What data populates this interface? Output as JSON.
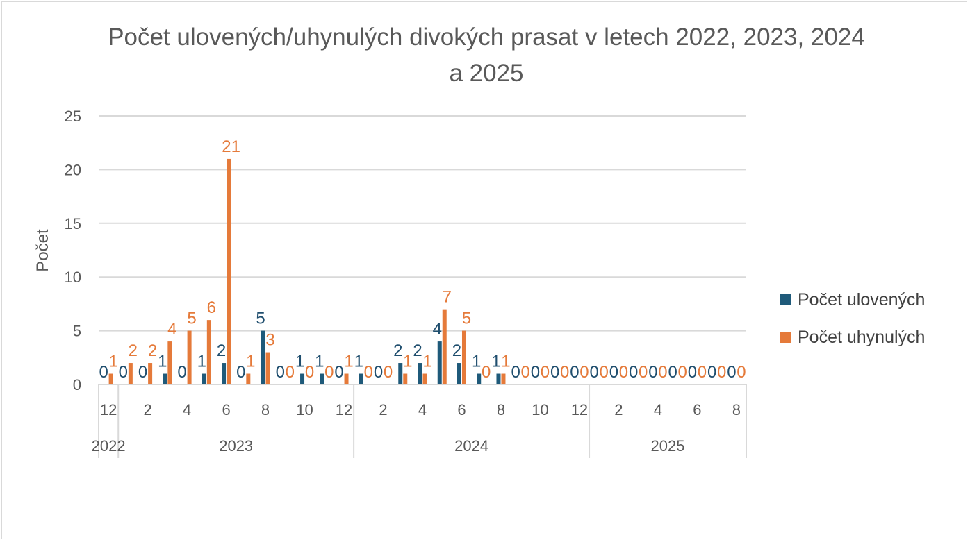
{
  "chart_data": {
    "type": "bar",
    "title": "Počet ulovených/uhynulých divokých prasat v letech 2022, 2023, 2024 a 2025",
    "ylabel": "Počet",
    "xlabel": "",
    "ylim": [
      0,
      25
    ],
    "yticks": [
      "0",
      "5",
      "10",
      "15",
      "20",
      "25"
    ],
    "grid": true,
    "legend_position": "right",
    "categories": [
      "12",
      "1",
      "2",
      "3",
      "4",
      "5",
      "6",
      "7",
      "8",
      "9",
      "10",
      "11",
      "12",
      "1",
      "2",
      "3",
      "4",
      "5",
      "6",
      "7",
      "8",
      "9",
      "10",
      "11",
      "12",
      "1",
      "2",
      "3",
      "4",
      "5",
      "6",
      "7",
      "8"
    ],
    "category_labels": [
      "12",
      "",
      "2",
      "",
      "4",
      "",
      "6",
      "",
      "8",
      "",
      "10",
      "",
      "12",
      "",
      "2",
      "",
      "4",
      "",
      "6",
      "",
      "8",
      "",
      "10",
      "",
      "12",
      "",
      "2",
      "",
      "4",
      "",
      "6",
      "",
      "8"
    ],
    "years": [
      {
        "label": "2022",
        "start": 0,
        "count": 1
      },
      {
        "label": "2023",
        "start": 1,
        "count": 12
      },
      {
        "label": "2024",
        "start": 13,
        "count": 12
      },
      {
        "label": "2025",
        "start": 25,
        "count": 8
      }
    ],
    "series": [
      {
        "name": "Počet ulovených",
        "color": "#1f5a7a",
        "label_color": "#1f4e6e",
        "values": [
          0,
          0,
          0,
          1,
          0,
          1,
          2,
          0,
          5,
          0,
          1,
          1,
          0,
          1,
          0,
          2,
          2,
          4,
          2,
          1,
          1,
          0,
          0,
          0,
          0,
          0,
          0,
          0,
          0,
          0,
          0,
          0,
          0
        ]
      },
      {
        "name": "Počet uhynulých",
        "color": "#e57a3a",
        "label_color": "#e57a3a",
        "values": [
          1,
          2,
          2,
          4,
          5,
          6,
          21,
          1,
          3,
          0,
          0,
          0,
          1,
          0,
          0,
          1,
          1,
          7,
          5,
          0,
          1,
          0,
          0,
          0,
          0,
          0,
          0,
          0,
          0,
          0,
          0,
          0,
          0
        ]
      }
    ]
  }
}
